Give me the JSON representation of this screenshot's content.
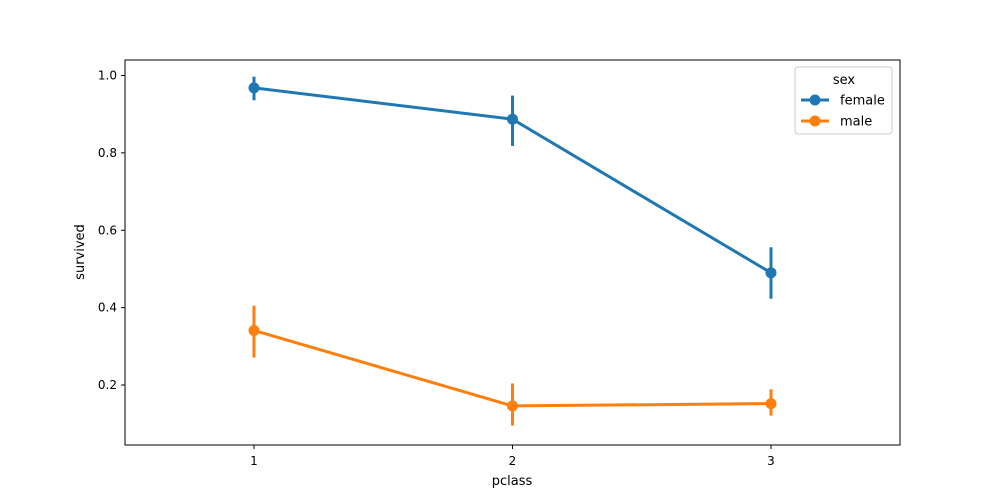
{
  "chart_data": {
    "type": "line",
    "xlabel": "pclass",
    "ylabel": "survived",
    "categories": [
      "1",
      "2",
      "3"
    ],
    "ylim": [
      0.045,
      1.04
    ],
    "yticks": [
      0.2,
      0.4,
      0.6,
      0.8,
      1.0
    ],
    "ytick_labels": [
      "0.2",
      "0.4",
      "0.6",
      "0.8",
      "1.0"
    ],
    "grid": false,
    "legend": {
      "title": "sex",
      "position": "top-right"
    },
    "series": [
      {
        "name": "female",
        "color": "#1f77b4",
        "values": [
          0.968,
          0.887,
          0.49
        ],
        "ci_low": [
          0.936,
          0.818,
          0.423
        ],
        "ci_high": [
          0.997,
          0.948,
          0.556
        ]
      },
      {
        "name": "male",
        "color": "#ff7f0e",
        "values": [
          0.341,
          0.146,
          0.152
        ],
        "ci_low": [
          0.271,
          0.095,
          0.121
        ],
        "ci_high": [
          0.405,
          0.204,
          0.189
        ]
      }
    ]
  }
}
